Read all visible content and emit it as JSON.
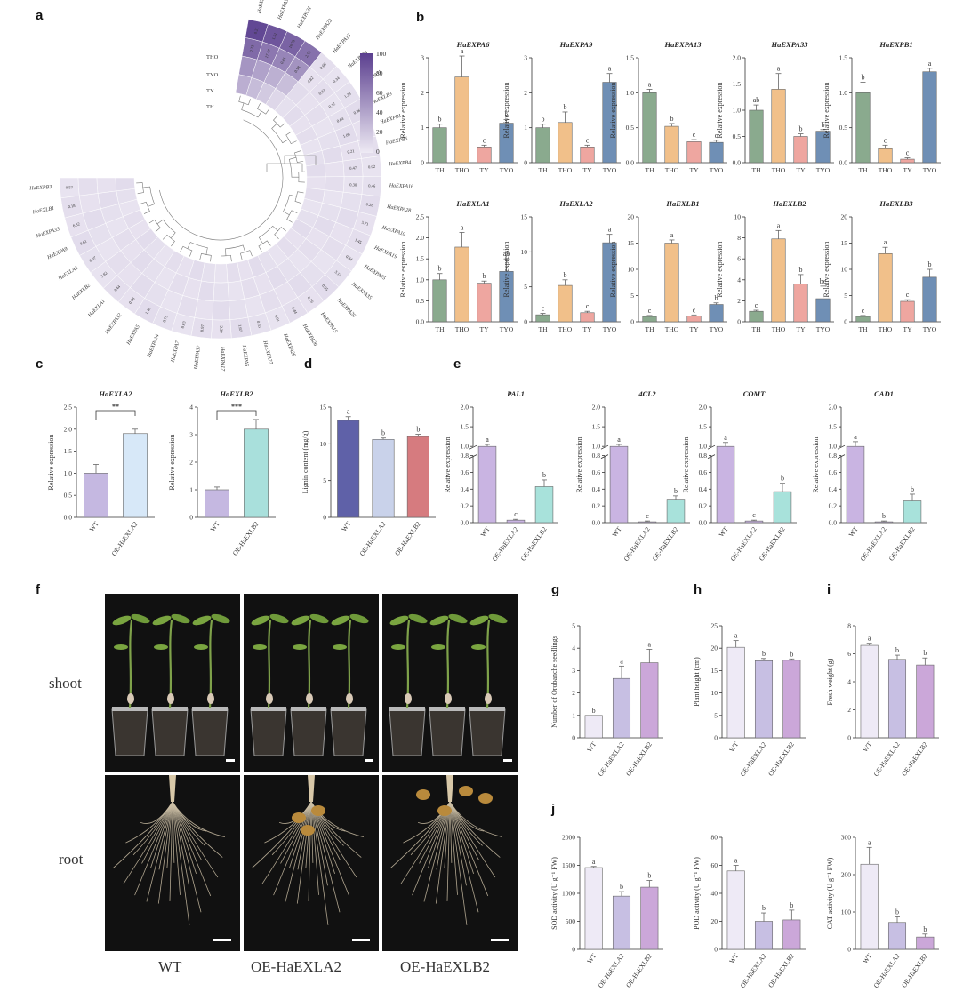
{
  "figure": {
    "panel_letters": [
      "a",
      "b",
      "c",
      "d",
      "e",
      "f",
      "g",
      "h",
      "i",
      "j"
    ],
    "photo_row_labels": [
      "shoot",
      "root"
    ],
    "photo_col_labels": [
      "WT",
      "OE-HaEXLA2",
      "OE-HaEXLB2"
    ]
  },
  "heatmap": {
    "col_labels": [
      "THO",
      "TYO",
      "TY",
      "TH"
    ],
    "legend_ticks": [
      "100",
      "80",
      "60",
      "40",
      "20",
      "0"
    ],
    "colors": {
      "low": "#e7e2f0",
      "high": "#5b3f8f"
    },
    "genes": [
      "HaEXPA1",
      "HaEXPA30",
      "HaEXPA21",
      "HaEXPA22",
      "HaEXPA13",
      "HaEXPA24",
      "HaEXPA11",
      "HaEXLB3",
      "HaEXPB1",
      "HaEXPB5",
      "HaEXPB4",
      "HaEXPA16",
      "HaEXPA28",
      "HaEXPA10",
      "HaEXPA19",
      "HaEXPA25",
      "HaEXPA35",
      "HaEXPA20",
      "HaEXPA15",
      "HaEXPA26",
      "HaEXPA29",
      "HaEXPA27",
      "HaEXPA6",
      "HaEXPA17",
      "HaEXPA37",
      "HaEXPA7",
      "HaEXPA14",
      "HaEXPA5",
      "HaEXPA32",
      "HaEXLA1",
      "HaEXLB2",
      "HaEXLA2",
      "HaEXPA9",
      "HaEXPA33",
      "HaEXLB1",
      "HaEXPB3"
    ],
    "cell_values": [
      "0.21",
      "1.61",
      "16.70",
      "2.53",
      "0.08",
      "0.34",
      "1.23",
      "0.36",
      "0.15",
      "0.80",
      "0.02",
      "0.46",
      "0.28",
      "5.71",
      "1.45",
      "0.34",
      "3.12",
      "0.05",
      "0.76",
      "0.44",
      "0.91",
      "0.55",
      "1.67",
      "2.30",
      "8.97",
      "0.03",
      "0.79",
      "1.40",
      "0.68",
      "2.44",
      "3.82",
      "0.07",
      "0.61",
      "6.32",
      "0.18",
      "0.52",
      "0.23",
      "17.47",
      "0.01",
      "0.98",
      "4.82",
      "0.33",
      "0.12",
      "0.64",
      "1.09",
      "0.21",
      "0.47",
      "0.30"
    ]
  },
  "chart_data": [
    {
      "id": "b-HaEXPA6",
      "type": "bar",
      "title": "HaEXPA6",
      "ylabel": "Relative expression",
      "categories": [
        "TH",
        "THO",
        "TY",
        "TYO"
      ],
      "values": [
        1.0,
        2.45,
        0.45,
        1.13
      ],
      "errors": [
        0.1,
        0.6,
        0.05,
        0.1
      ],
      "letters": [
        "b",
        "a",
        "c",
        "b"
      ],
      "ylim": [
        0,
        3
      ],
      "yticks": [
        "0",
        "1",
        "2",
        "3"
      ]
    },
    {
      "id": "b-HaEXPA9",
      "type": "bar",
      "title": "HaEXPA9",
      "ylabel": "Relative expression",
      "categories": [
        "TH",
        "THO",
        "TY",
        "TYO"
      ],
      "values": [
        1.0,
        1.15,
        0.45,
        2.3
      ],
      "errors": [
        0.1,
        0.3,
        0.05,
        0.25
      ],
      "letters": [
        "b",
        "b",
        "c",
        "a"
      ],
      "ylim": [
        0,
        3
      ],
      "yticks": [
        "0",
        "1",
        "2",
        "3"
      ]
    },
    {
      "id": "b-HaEXPA13",
      "type": "bar",
      "title": "HaEXPA13",
      "ylabel": "Relative expression",
      "categories": [
        "TH",
        "THO",
        "TY",
        "TYO"
      ],
      "values": [
        1.0,
        0.52,
        0.3,
        0.29
      ],
      "errors": [
        0.05,
        0.04,
        0.03,
        0.03
      ],
      "letters": [
        "a",
        "b",
        "c",
        "c"
      ],
      "ylim": [
        0,
        1.5
      ],
      "yticks": [
        "0.0",
        "0.5",
        "1.0",
        "1.5"
      ]
    },
    {
      "id": "b-HaEXPA33",
      "type": "bar",
      "title": "HaEXPA33",
      "ylabel": "Relative expression",
      "categories": [
        "TH",
        "THO",
        "TY",
        "TYO"
      ],
      "values": [
        1.0,
        1.4,
        0.5,
        0.6
      ],
      "errors": [
        0.1,
        0.3,
        0.05,
        0.03
      ],
      "letters": [
        "ab",
        "a",
        "b",
        "b"
      ],
      "ylim": [
        0,
        2.0
      ],
      "yticks": [
        "0.0",
        "0.5",
        "1.0",
        "1.5",
        "2.0"
      ]
    },
    {
      "id": "b-HaEXPB1",
      "type": "bar",
      "title": "HaEXPB1",
      "ylabel": "Relative expression",
      "categories": [
        "TH",
        "THO",
        "TY",
        "TYO"
      ],
      "values": [
        1.0,
        0.2,
        0.05,
        1.3
      ],
      "errors": [
        0.15,
        0.05,
        0.02,
        0.05
      ],
      "letters": [
        "b",
        "c",
        "c",
        "a"
      ],
      "ylim": [
        0,
        1.5
      ],
      "yticks": [
        "0.0",
        "0.5",
        "1.0",
        "1.5"
      ]
    },
    {
      "id": "b-HaEXLA1",
      "type": "bar",
      "title": "HaEXLA1",
      "ylabel": "Relative expression",
      "categories": [
        "TH",
        "THO",
        "TY",
        "TYO"
      ],
      "values": [
        1.0,
        1.78,
        0.92,
        1.2
      ],
      "errors": [
        0.15,
        0.35,
        0.05,
        0.3
      ],
      "letters": [
        "b",
        "a",
        "b",
        "ab"
      ],
      "ylim": [
        0,
        2.5
      ],
      "yticks": [
        "0.0",
        "0.5",
        "1.0",
        "1.5",
        "2.0",
        "2.5"
      ]
    },
    {
      "id": "b-HaEXLA2",
      "type": "bar",
      "title": "HaEXLA2",
      "ylabel": "Relative expression",
      "categories": [
        "TH",
        "THO",
        "TY",
        "TYO"
      ],
      "values": [
        1.0,
        5.2,
        1.3,
        11.3
      ],
      "errors": [
        0.2,
        0.8,
        0.2,
        1.2
      ],
      "letters": [
        "c",
        "b",
        "c",
        "a"
      ],
      "ylim": [
        0,
        15
      ],
      "yticks": [
        "0",
        "5",
        "10",
        "15"
      ]
    },
    {
      "id": "b-HaEXLB1",
      "type": "bar",
      "title": "HaEXLB1",
      "ylabel": "Relative expression",
      "categories": [
        "TH",
        "THO",
        "TY",
        "TYO"
      ],
      "values": [
        1.0,
        15.0,
        1.1,
        3.3
      ],
      "errors": [
        0.2,
        0.6,
        0.2,
        0.3
      ],
      "letters": [
        "c",
        "a",
        "c",
        "b"
      ],
      "ylim": [
        0,
        20
      ],
      "yticks": [
        "0",
        "5",
        "10",
        "15",
        "20"
      ]
    },
    {
      "id": "b-HaEXLB2",
      "type": "bar",
      "title": "HaEXLB2",
      "ylabel": "Relative expression",
      "categories": [
        "TH",
        "THO",
        "TY",
        "TYO"
      ],
      "values": [
        1.0,
        7.9,
        3.6,
        2.2
      ],
      "errors": [
        0.1,
        0.8,
        0.9,
        1.2
      ],
      "letters": [
        "c",
        "a",
        "b",
        "bc"
      ],
      "ylim": [
        0,
        10
      ],
      "yticks": [
        "0",
        "2",
        "4",
        "6",
        "8",
        "10"
      ]
    },
    {
      "id": "b-HaEXLB3",
      "type": "bar",
      "title": "HaEXLB3",
      "ylabel": "Relative expression",
      "categories": [
        "TH",
        "THO",
        "TY",
        "TYO"
      ],
      "values": [
        1.0,
        13.0,
        3.9,
        8.5
      ],
      "errors": [
        0.2,
        1.2,
        0.3,
        1.5
      ],
      "letters": [
        "c",
        "a",
        "c",
        "b"
      ],
      "ylim": [
        0,
        20
      ],
      "yticks": [
        "0",
        "5",
        "10",
        "15",
        "20"
      ]
    },
    {
      "id": "c-HaEXLA2",
      "type": "bar",
      "title": "HaEXLA2",
      "ylabel": "Relative expression",
      "categories": [
        "WT",
        "OE-HaEXLA2"
      ],
      "values": [
        1.0,
        1.9
      ],
      "errors": [
        0.2,
        0.1
      ],
      "significance": "**",
      "ylim": [
        0,
        2.5
      ],
      "yticks": [
        "0.0",
        "0.5",
        "1.0",
        "1.5",
        "2.0",
        "2.5"
      ]
    },
    {
      "id": "c-HaEXLB2",
      "type": "bar",
      "title": "HaEXLB2",
      "ylabel": "Relative expression",
      "categories": [
        "WT",
        "OE-HaEXLB2"
      ],
      "values": [
        1.0,
        3.2
      ],
      "errors": [
        0.1,
        0.35
      ],
      "significance": "***",
      "ylim": [
        0,
        4
      ],
      "yticks": [
        "0",
        "1",
        "2",
        "3",
        "4"
      ]
    },
    {
      "id": "d-lignin",
      "type": "bar",
      "title": "",
      "ylabel": "Lignin content (mg/g)",
      "categories": [
        "WT",
        "OE-HaEXLA2",
        "OE-HaEXLB2"
      ],
      "values": [
        13.2,
        10.6,
        11.0
      ],
      "errors": [
        0.5,
        0.2,
        0.3
      ],
      "letters": [
        "a",
        "b",
        "b"
      ],
      "ylim": [
        0,
        15
      ],
      "yticks": [
        "0",
        "5",
        "10",
        "15"
      ]
    },
    {
      "id": "e-PAL1",
      "type": "bar",
      "title": "PAL1",
      "ylabel": "Relative expression",
      "categories": [
        "WT",
        "OE-HaEXLA2",
        "OE-HaEXLB2"
      ],
      "values": [
        1.0,
        0.03,
        0.43
      ],
      "errors": [
        0.05,
        0.01,
        0.08
      ],
      "letters": [
        "a",
        "c",
        "b"
      ],
      "yticks": [
        "0.0",
        "0.2",
        "0.4",
        "0.6",
        "0.8",
        "1.0",
        "1.5",
        "2.0"
      ]
    },
    {
      "id": "e-4CL2",
      "type": "bar",
      "title": "4CL2",
      "ylabel": "Relative expression",
      "categories": [
        "WT",
        "OE-HaEXLA2",
        "OE-HaEXLB2"
      ],
      "values": [
        1.0,
        0.01,
        0.28
      ],
      "errors": [
        0.05,
        0.01,
        0.04
      ],
      "letters": [
        "a",
        "c",
        "b"
      ],
      "yticks": [
        "0.0",
        "0.2",
        "0.4",
        "0.6",
        "0.8",
        "1.0",
        "1.5",
        "2.0"
      ]
    },
    {
      "id": "e-COMT",
      "type": "bar",
      "title": "COMT",
      "ylabel": "Relative expression",
      "categories": [
        "WT",
        "OE-HaEXLA2",
        "OE-HaEXLB2"
      ],
      "values": [
        1.0,
        0.02,
        0.37
      ],
      "errors": [
        0.1,
        0.01,
        0.1
      ],
      "letters": [
        "a",
        "c",
        "b"
      ],
      "yticks": [
        "0.0",
        "0.2",
        "0.4",
        "0.6",
        "0.8",
        "1.0",
        "1.5",
        "2.0"
      ]
    },
    {
      "id": "e-CAD1",
      "type": "bar",
      "title": "CAD1",
      "ylabel": "Relative expression",
      "categories": [
        "WT",
        "OE-HaEXLA2",
        "OE-HaEXLB2"
      ],
      "values": [
        1.0,
        0.01,
        0.26
      ],
      "errors": [
        0.12,
        0.01,
        0.08
      ],
      "letters": [
        "a",
        "b",
        "b"
      ],
      "yticks": [
        "0.0",
        "0.2",
        "0.4",
        "0.6",
        "0.8",
        "1.0",
        "1.5",
        "2.0"
      ]
    },
    {
      "id": "g-orobanche",
      "type": "bar",
      "title": "",
      "ylabel": "Number of Orobanche seedlings",
      "categories": [
        "WT",
        "OE-HaEXLA2",
        "OE-HaEXLB2"
      ],
      "values": [
        1.0,
        2.65,
        3.35
      ],
      "errors": [
        0,
        0.55,
        0.6
      ],
      "letters": [
        "b",
        "a",
        "a"
      ],
      "ylim": [
        0,
        5
      ],
      "yticks": [
        "0",
        "1",
        "2",
        "3",
        "4",
        "5"
      ]
    },
    {
      "id": "h-height",
      "type": "bar",
      "title": "",
      "ylabel": "Plant height (cm)",
      "categories": [
        "WT",
        "OE-HaEXLA2",
        "OE-HaEXLB2"
      ],
      "values": [
        20.2,
        17.2,
        17.3
      ],
      "errors": [
        1.5,
        0.5,
        0.3
      ],
      "letters": [
        "a",
        "b",
        "b"
      ],
      "ylim": [
        0,
        25
      ],
      "yticks": [
        "0",
        "5",
        "10",
        "15",
        "20",
        "25"
      ]
    },
    {
      "id": "i-weight",
      "type": "bar",
      "title": "",
      "ylabel": "Fresh weight (g)",
      "categories": [
        "WT",
        "OE-HaEXLA2",
        "OE-HaEXLB2"
      ],
      "values": [
        6.6,
        5.6,
        5.2
      ],
      "errors": [
        0.15,
        0.3,
        0.5
      ],
      "letters": [
        "a",
        "b",
        "b"
      ],
      "ylim": [
        0,
        8
      ],
      "yticks": [
        "0",
        "2",
        "4",
        "6",
        "8"
      ]
    },
    {
      "id": "j-SOD",
      "type": "bar",
      "title": "",
      "ylabel": "SOD activity (U g⁻¹ FW)",
      "categories": [
        "WT",
        "OE-HaEXLA2",
        "OE-HaEXLB2"
      ],
      "values": [
        1460,
        950,
        1110
      ],
      "errors": [
        20,
        80,
        120
      ],
      "letters": [
        "a",
        "b",
        "b"
      ],
      "ylim": [
        0,
        2000
      ],
      "yticks": [
        "0",
        "500",
        "1000",
        "1500",
        "2000"
      ]
    },
    {
      "id": "j-POD",
      "type": "bar",
      "title": "",
      "ylabel": "POD activity (U g⁻¹ FW)",
      "categories": [
        "WT",
        "OE-HaEXLA2",
        "OE-HaEXLB2"
      ],
      "values": [
        56,
        20,
        21
      ],
      "errors": [
        4,
        6,
        7
      ],
      "letters": [
        "a",
        "b",
        "b"
      ],
      "ylim": [
        0,
        80
      ],
      "yticks": [
        "0",
        "20",
        "40",
        "60",
        "80"
      ]
    },
    {
      "id": "j-CAT",
      "type": "bar",
      "title": "",
      "ylabel": "CAT activity (U g⁻¹ FW)",
      "categories": [
        "WT",
        "OE-HaEXLA2",
        "OE-HaEXLB2"
      ],
      "values": [
        228,
        72,
        33
      ],
      "errors": [
        45,
        15,
        8
      ],
      "letters": [
        "a",
        "b",
        "b"
      ],
      "ylim": [
        0,
        300
      ],
      "yticks": [
        "0",
        "100",
        "200",
        "300"
      ]
    }
  ]
}
